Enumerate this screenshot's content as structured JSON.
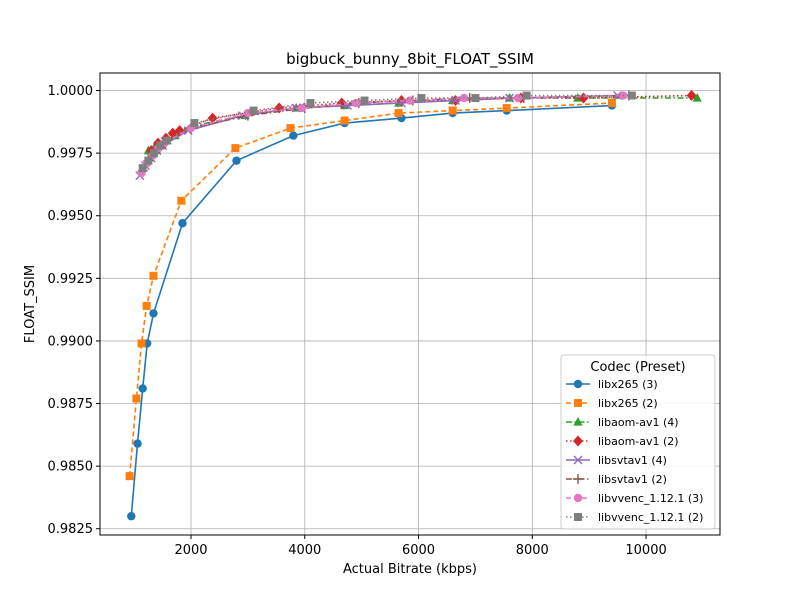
{
  "chart_data": {
    "type": "line",
    "title": "bigbuck_bunny_8bit_FLOAT_SSIM",
    "xlabel": "Actual Bitrate (kbps)",
    "ylabel": "FLOAT_SSIM",
    "xlim": [
      400,
      11300
    ],
    "ylim": [
      0.98225,
      1.0007
    ],
    "xticks": [
      2000,
      4000,
      6000,
      8000,
      10000
    ],
    "xtick_labels": [
      "2000",
      "4000",
      "6000",
      "8000",
      "10000"
    ],
    "yticks": [
      0.9825,
      0.985,
      0.9875,
      0.99,
      0.9925,
      0.995,
      0.9975,
      1.0
    ],
    "ytick_labels": [
      "0.9825",
      "0.9850",
      "0.9875",
      "0.9900",
      "0.9925",
      "0.9950",
      "0.9975",
      "1.0000"
    ],
    "grid": true,
    "legend": {
      "title": "Codec (Preset)",
      "position": "lower-right"
    },
    "series": [
      {
        "name": "libx265 (3)",
        "color": "#1f77b4",
        "marker": "circle",
        "dash": "solid",
        "x": [
          950,
          1060,
          1150,
          1230,
          1340,
          1850,
          2800,
          3800,
          4700,
          5700,
          6600,
          7550,
          9400
        ],
        "y": [
          0.983,
          0.9859,
          0.9881,
          0.9899,
          0.9911,
          0.9947,
          0.9972,
          0.9982,
          0.9987,
          0.9989,
          0.9991,
          0.9992,
          0.9994
        ]
      },
      {
        "name": "libx265 (2)",
        "color": "#ff7f0e",
        "marker": "square",
        "dash": "dashed",
        "x": [
          920,
          1040,
          1130,
          1220,
          1340,
          1830,
          2780,
          3750,
          4700,
          5650,
          6600,
          7550,
          9400
        ],
        "y": [
          0.9846,
          0.9877,
          0.9899,
          0.9914,
          0.9926,
          0.9956,
          0.9977,
          0.9985,
          0.9988,
          0.9991,
          0.9992,
          0.9993,
          0.9995
        ]
      },
      {
        "name": "libaom-av1 (4)",
        "color": "#2ca02c",
        "marker": "triangle",
        "dash": "dashdot",
        "x": [
          1250,
          1350,
          1450,
          1580,
          1720,
          2050,
          2950,
          3850,
          4700,
          5650,
          6600,
          7600,
          8800,
          10900
        ],
        "y": [
          0.9976,
          0.9977,
          0.9978,
          0.998,
          0.9982,
          0.9986,
          0.999,
          0.9993,
          0.9994,
          0.9995,
          0.9996,
          0.9997,
          0.9997,
          0.9997
        ]
      },
      {
        "name": "libaom-av1 (2)",
        "color": "#d62728",
        "marker": "diamond",
        "dash": "dotted",
        "x": [
          1300,
          1420,
          1560,
          1680,
          1800,
          2380,
          3550,
          4650,
          5700,
          6650,
          7800,
          8900,
          10800
        ],
        "y": [
          0.9976,
          0.9979,
          0.9981,
          0.9983,
          0.9984,
          0.9989,
          0.9993,
          0.9995,
          0.9996,
          0.9996,
          0.9997,
          0.9997,
          0.9998
        ]
      },
      {
        "name": "libsvtav1 (4)",
        "color": "#9467bd",
        "marker": "x",
        "dash": "solid",
        "x": [
          1100,
          1200,
          1300,
          1400,
          1500,
          1950,
          2900,
          3850,
          4750,
          5700,
          6650,
          7600,
          9500
        ],
        "y": [
          0.9966,
          0.997,
          0.9973,
          0.9976,
          0.9978,
          0.9984,
          0.999,
          0.9993,
          0.9994,
          0.9995,
          0.9996,
          0.9997,
          0.9998
        ]
      },
      {
        "name": "libsvtav1 (2)",
        "color": "#8c564b",
        "marker": "plus",
        "dash": "dashdot",
        "x": [
          1150,
          1250,
          1350,
          1450,
          1550,
          2000,
          3000,
          4000,
          4950,
          5900,
          6900,
          7850,
          9700
        ],
        "y": [
          0.9968,
          0.9972,
          0.9975,
          0.9977,
          0.9979,
          0.9985,
          0.999,
          0.9993,
          0.9995,
          0.9996,
          0.9997,
          0.9997,
          0.9998
        ]
      },
      {
        "name": "libvvenc_1.12.1 (3)",
        "color": "#e377c2",
        "marker": "circle",
        "dash": "dashed",
        "x": [
          1130,
          1230,
          1330,
          1430,
          1530,
          2000,
          3000,
          3950,
          4900,
          5850,
          6800,
          7750,
          9600
        ],
        "y": [
          0.9967,
          0.9971,
          0.9974,
          0.9977,
          0.9979,
          0.9985,
          0.9991,
          0.9993,
          0.9995,
          0.9996,
          0.9997,
          0.9997,
          0.9998
        ]
      },
      {
        "name": "libvvenc_1.12.1 (2)",
        "color": "#7f7f7f",
        "marker": "square",
        "dash": "dotted",
        "x": [
          1150,
          1250,
          1350,
          1460,
          1570,
          2060,
          3100,
          4100,
          5050,
          6050,
          7000,
          7900,
          9750
        ],
        "y": [
          0.9969,
          0.9972,
          0.9975,
          0.9978,
          0.998,
          0.9987,
          0.9992,
          0.9995,
          0.9996,
          0.9997,
          0.9997,
          0.9998,
          0.9998
        ]
      }
    ]
  }
}
